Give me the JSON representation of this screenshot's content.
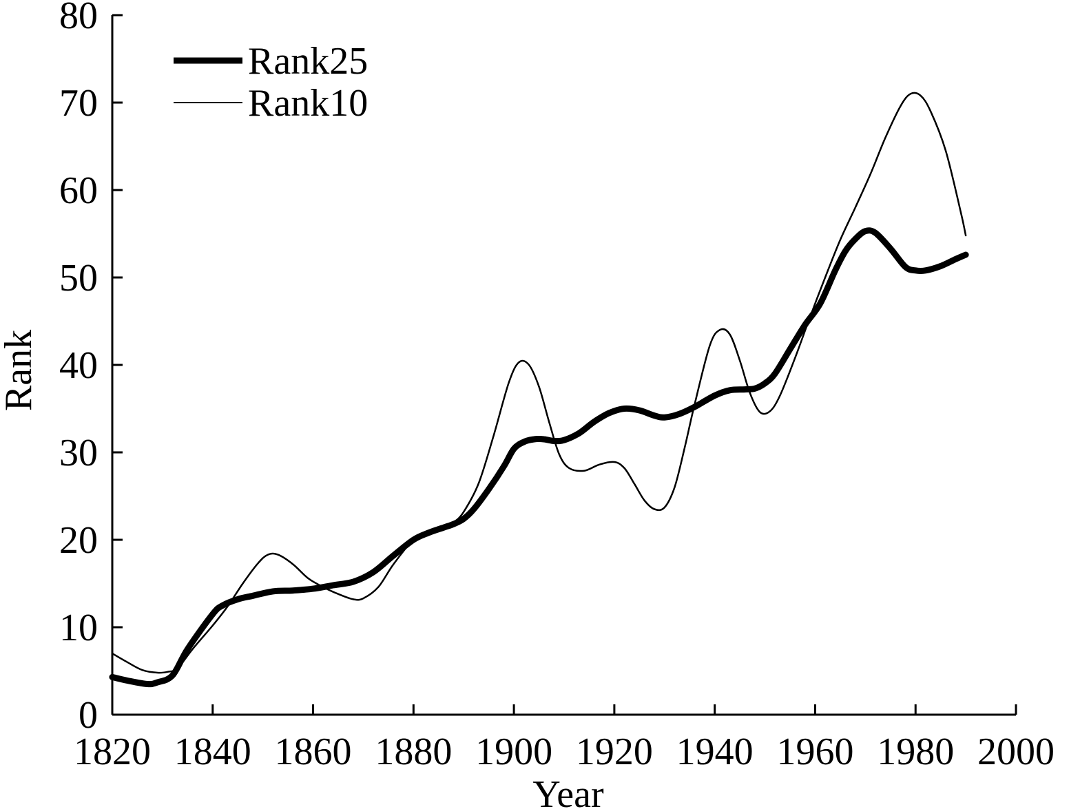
{
  "chart_data": {
    "type": "line",
    "xlabel": "Year",
    "ylabel": "Rank",
    "xlim": [
      1820,
      2000
    ],
    "ylim": [
      0,
      80
    ],
    "xticks": [
      1820,
      1840,
      1860,
      1880,
      1900,
      1920,
      1940,
      1960,
      1980,
      2000
    ],
    "yticks": [
      0,
      10,
      20,
      30,
      40,
      50,
      60,
      70,
      80
    ],
    "grid": false,
    "legend_position": "top-left",
    "series": [
      {
        "name": "Rank25",
        "color": "#000000",
        "style": "thick",
        "x": [
          1820,
          1823,
          1827,
          1829,
          1832,
          1835,
          1840,
          1842,
          1845,
          1848,
          1852,
          1856,
          1860,
          1864,
          1868,
          1872,
          1876,
          1880,
          1883,
          1886,
          1888,
          1890,
          1892,
          1895,
          1898,
          1900,
          1902,
          1904,
          1906,
          1908,
          1910,
          1913,
          1916,
          1919,
          1922,
          1925,
          1928,
          1930,
          1933,
          1936,
          1940,
          1943,
          1946,
          1948,
          1950,
          1952,
          1955,
          1958,
          1961,
          1964,
          1966,
          1968,
          1970,
          1972,
          1975,
          1978,
          1980,
          1982,
          1985,
          1988,
          1990
        ],
        "y": [
          4.3,
          3.9,
          3.5,
          3.7,
          4.5,
          7.5,
          11.5,
          12.5,
          13.2,
          13.6,
          14.1,
          14.2,
          14.4,
          14.8,
          15.2,
          16.3,
          18.2,
          20.0,
          20.8,
          21.4,
          21.8,
          22.4,
          23.5,
          25.8,
          28.4,
          30.4,
          31.2,
          31.5,
          31.5,
          31.3,
          31.4,
          32.2,
          33.5,
          34.5,
          35.0,
          34.8,
          34.2,
          34.0,
          34.4,
          35.2,
          36.5,
          37.1,
          37.2,
          37.3,
          37.9,
          39.0,
          41.8,
          44.6,
          47.0,
          50.8,
          53.0,
          54.4,
          55.3,
          55.1,
          53.3,
          51.2,
          50.8,
          50.8,
          51.3,
          52.1,
          52.6
        ]
      },
      {
        "name": "Rank10",
        "color": "#000000",
        "style": "thin",
        "x": [
          1820,
          1823,
          1826,
          1829,
          1831,
          1833,
          1836,
          1840,
          1843,
          1846,
          1849,
          1851,
          1853,
          1856,
          1859,
          1862,
          1865,
          1868,
          1870,
          1873,
          1876,
          1880,
          1883,
          1886,
          1888,
          1890,
          1893,
          1896,
          1899,
          1901,
          1903,
          1905,
          1907,
          1909,
          1911,
          1914,
          1917,
          1920,
          1922,
          1924,
          1926,
          1928,
          1930,
          1932,
          1934,
          1936,
          1939,
          1941,
          1943,
          1945,
          1947,
          1949,
          1951,
          1953,
          1956,
          1959,
          1962,
          1965,
          1968,
          1971,
          1974,
          1977,
          1979,
          1981,
          1983,
          1986,
          1989,
          1990
        ],
        "y": [
          7.0,
          6.0,
          5.1,
          4.8,
          4.9,
          5.3,
          7.5,
          10.2,
          12.4,
          15.0,
          17.3,
          18.3,
          18.3,
          17.2,
          15.6,
          14.6,
          13.8,
          13.2,
          13.3,
          14.6,
          17.2,
          20.0,
          20.8,
          21.4,
          22.0,
          23.2,
          26.5,
          32.0,
          38.0,
          40.3,
          40.0,
          37.5,
          33.5,
          29.8,
          28.2,
          27.9,
          28.6,
          28.9,
          28.2,
          26.4,
          24.5,
          23.5,
          23.7,
          26.0,
          30.5,
          35.5,
          42.2,
          44.0,
          43.5,
          40.5,
          36.8,
          34.6,
          34.7,
          36.5,
          40.8,
          45.5,
          50.0,
          54.3,
          58.0,
          61.8,
          66.0,
          69.6,
          71.0,
          70.8,
          69.0,
          64.5,
          57.5,
          54.8
        ]
      }
    ]
  }
}
